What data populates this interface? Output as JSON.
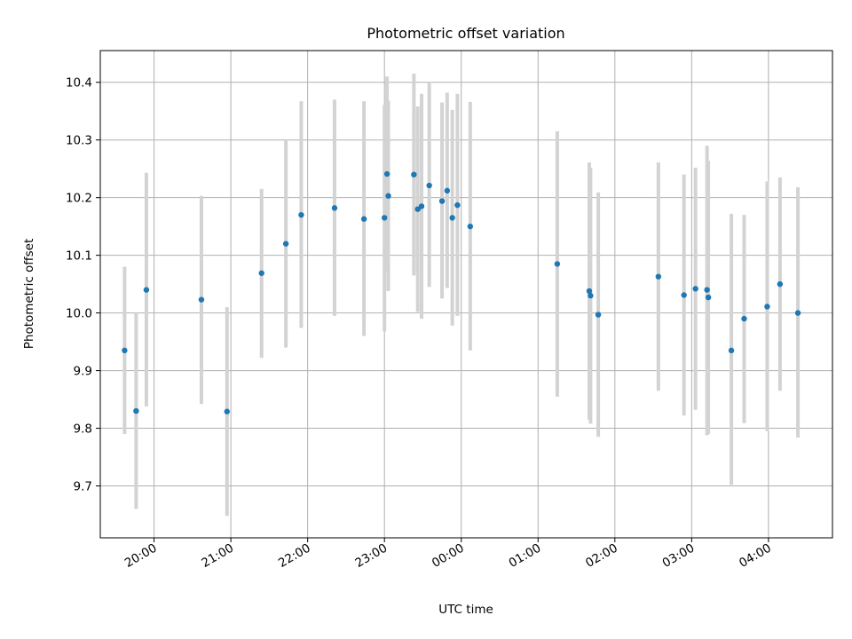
{
  "chart_data": {
    "type": "scatter",
    "title": "Photometric offset variation",
    "xlabel": "UTC time",
    "ylabel": "Photometric offset",
    "xlim": [
      "19:18",
      "04:50"
    ],
    "ylim": [
      9.61,
      10.455
    ],
    "grid": true,
    "legend": "none",
    "x_ticks": [
      "20:00",
      "21:00",
      "22:00",
      "23:00",
      "00:00",
      "01:00",
      "02:00",
      "03:00",
      "04:00"
    ],
    "y_ticks": [
      9.7,
      9.8,
      9.9,
      10.0,
      10.1,
      10.2,
      10.3,
      10.4
    ],
    "y_tick_labels": [
      "9.7",
      "9.8",
      "9.9",
      "10.0",
      "10.1",
      "10.2",
      "10.3",
      "10.4"
    ],
    "colors": {
      "points": "#1f77b4",
      "error_bars": "#d3d3d3"
    },
    "points": [
      {
        "t": "19:37",
        "y": 9.935,
        "lo": 9.79,
        "hi": 10.08
      },
      {
        "t": "19:46",
        "y": 9.83,
        "lo": 9.66,
        "hi": 10.0
      },
      {
        "t": "19:54",
        "y": 10.04,
        "lo": 9.838,
        "hi": 10.243
      },
      {
        "t": "20:37",
        "y": 10.023,
        "lo": 9.842,
        "hi": 10.203
      },
      {
        "t": "20:57",
        "y": 9.829,
        "lo": 9.648,
        "hi": 10.01
      },
      {
        "t": "21:24",
        "y": 10.069,
        "lo": 9.922,
        "hi": 10.215
      },
      {
        "t": "21:43",
        "y": 10.12,
        "lo": 9.94,
        "hi": 10.3
      },
      {
        "t": "21:55",
        "y": 10.17,
        "lo": 9.974,
        "hi": 10.367
      },
      {
        "t": "22:21",
        "y": 10.182,
        "lo": 9.995,
        "hi": 10.37
      },
      {
        "t": "22:44",
        "y": 10.163,
        "lo": 9.96,
        "hi": 10.367
      },
      {
        "t": "23:00",
        "y": 10.165,
        "lo": 9.968,
        "hi": 10.361
      },
      {
        "t": "23:02",
        "y": 10.241,
        "lo": 10.072,
        "hi": 10.41
      },
      {
        "t": "23:03",
        "y": 10.203,
        "lo": 10.038,
        "hi": 10.368
      },
      {
        "t": "23:23",
        "y": 10.24,
        "lo": 10.065,
        "hi": 10.415
      },
      {
        "t": "23:26",
        "y": 10.18,
        "lo": 10.002,
        "hi": 10.358
      },
      {
        "t": "23:29",
        "y": 10.185,
        "lo": 9.99,
        "hi": 10.38
      },
      {
        "t": "23:35",
        "y": 10.221,
        "lo": 10.045,
        "hi": 10.4
      },
      {
        "t": "23:45",
        "y": 10.194,
        "lo": 10.025,
        "hi": 10.365
      },
      {
        "t": "23:49",
        "y": 10.212,
        "lo": 10.043,
        "hi": 10.382
      },
      {
        "t": "23:53",
        "y": 10.165,
        "lo": 9.978,
        "hi": 10.352
      },
      {
        "t": "23:57",
        "y": 10.187,
        "lo": 9.995,
        "hi": 10.38
      },
      {
        "t": "00:07",
        "y": 10.15,
        "lo": 9.935,
        "hi": 10.366
      },
      {
        "t": "01:15",
        "y": 10.085,
        "lo": 9.855,
        "hi": 10.315
      },
      {
        "t": "01:40",
        "y": 10.038,
        "lo": 9.815,
        "hi": 10.261
      },
      {
        "t": "01:41",
        "y": 10.03,
        "lo": 9.808,
        "hi": 10.252
      },
      {
        "t": "01:47",
        "y": 9.997,
        "lo": 9.785,
        "hi": 10.209
      },
      {
        "t": "02:34",
        "y": 10.063,
        "lo": 9.865,
        "hi": 10.261
      },
      {
        "t": "02:54",
        "y": 10.031,
        "lo": 9.822,
        "hi": 10.24
      },
      {
        "t": "03:03",
        "y": 10.042,
        "lo": 9.832,
        "hi": 10.252
      },
      {
        "t": "03:12",
        "y": 10.04,
        "lo": 9.788,
        "hi": 10.29
      },
      {
        "t": "03:13",
        "y": 10.027,
        "lo": 9.79,
        "hi": 10.264
      },
      {
        "t": "03:31",
        "y": 9.935,
        "lo": 9.702,
        "hi": 10.172
      },
      {
        "t": "03:41",
        "y": 9.99,
        "lo": 9.809,
        "hi": 10.17
      },
      {
        "t": "03:59",
        "y": 10.011,
        "lo": 9.795,
        "hi": 10.228
      },
      {
        "t": "04:09",
        "y": 10.05,
        "lo": 9.865,
        "hi": 10.235
      },
      {
        "t": "04:23",
        "y": 10.0,
        "lo": 9.784,
        "hi": 10.218
      }
    ]
  }
}
